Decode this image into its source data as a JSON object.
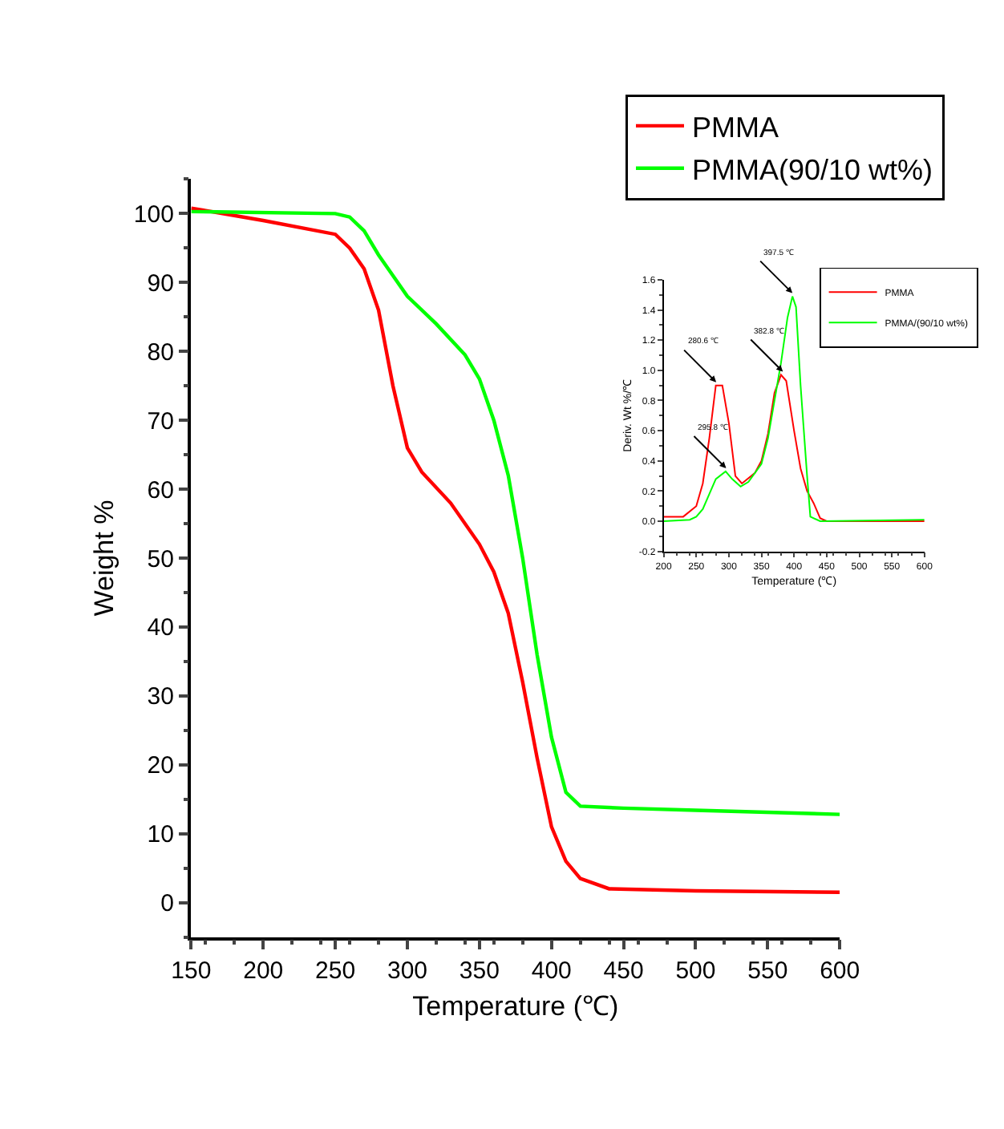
{
  "chart_data": [
    {
      "type": "line",
      "xlabel": "Temperature (℃)",
      "ylabel": "Weight %",
      "xlim": [
        150,
        600
      ],
      "ylim": [
        -5,
        105
      ],
      "xticks": [
        150,
        200,
        250,
        300,
        350,
        400,
        450,
        500,
        550,
        600
      ],
      "yticks": [
        0,
        10,
        20,
        30,
        40,
        50,
        60,
        70,
        80,
        90,
        100
      ],
      "legend": "top right",
      "series": [
        {
          "name": "PMMA",
          "color": "#ff0000",
          "x": [
            150,
            200,
            250,
            260,
            270,
            280,
            290,
            300,
            310,
            330,
            350,
            360,
            370,
            380,
            390,
            400,
            410,
            420,
            440,
            500,
            600
          ],
          "values": [
            100.8,
            99,
            97,
            95,
            92,
            86,
            75,
            66,
            62.5,
            58,
            52,
            48,
            42,
            32,
            21,
            11,
            6,
            3.5,
            2,
            1.7,
            1.5
          ]
        },
        {
          "name": "PMMA(90/10 wt%)",
          "color": "#00ff00",
          "x": [
            150,
            250,
            260,
            270,
            280,
            290,
            300,
            320,
            340,
            350,
            360,
            370,
            380,
            390,
            400,
            410,
            420,
            450,
            500,
            600
          ],
          "values": [
            100.3,
            100,
            99.5,
            97.5,
            94,
            91,
            88,
            84,
            79.5,
            76,
            70,
            62,
            50,
            36,
            24,
            16,
            14,
            13.7,
            13.4,
            12.8
          ]
        }
      ]
    },
    {
      "type": "line",
      "xlabel": "Temperature (℃)",
      "ylabel": "Deriv. Wt %/℃",
      "xlim": [
        200,
        600
      ],
      "ylim": [
        -0.2,
        1.6
      ],
      "xticks": [
        200,
        250,
        300,
        350,
        400,
        450,
        500,
        550,
        600
      ],
      "yticks": [
        -0.2,
        {
          "value": 0,
          "label": "0.0"
        },
        0.2,
        0.4,
        0.6,
        0.8,
        {
          "value": 1,
          "label": "1.0"
        },
        1.2,
        1.4,
        1.6
      ],
      "legend": "top right",
      "series": [
        {
          "name": "PMMA",
          "color": "#ff0000",
          "x": [
            200,
            230,
            250,
            260,
            270,
            280,
            290,
            300,
            310,
            320,
            340,
            350,
            360,
            370,
            380,
            388,
            400,
            410,
            420,
            430,
            440,
            450,
            600
          ],
          "values": [
            0.03,
            0.03,
            0.1,
            0.25,
            0.55,
            0.9,
            0.9,
            0.65,
            0.3,
            0.25,
            0.32,
            0.4,
            0.58,
            0.85,
            0.97,
            0.93,
            0.6,
            0.35,
            0.2,
            0.12,
            0.02,
            0.0,
            0.0
          ]
        },
        {
          "name": "PMMA/(90/10 wt%)",
          "color": "#00ff00",
          "x": [
            200,
            240,
            250,
            260,
            270,
            280,
            295,
            305,
            318,
            330,
            350,
            360,
            370,
            380,
            390,
            397.5,
            403,
            410,
            420,
            425,
            440,
            600
          ],
          "values": [
            0,
            0.01,
            0.03,
            0.08,
            0.18,
            0.28,
            0.33,
            0.28,
            0.23,
            0.26,
            0.38,
            0.55,
            0.8,
            1.05,
            1.35,
            1.49,
            1.42,
            0.9,
            0.3,
            0.03,
            0.0,
            0.01
          ]
        }
      ],
      "annotations": [
        {
          "text": "397.5 ℃",
          "x": 397.5,
          "y": 1.49
        },
        {
          "text": "382.8 ℃",
          "x": 382.8,
          "y": 0.97
        },
        {
          "text": "280.6 ℃",
          "x": 280.6,
          "y": 0.9
        },
        {
          "text": "295.8 ℃",
          "x": 295.8,
          "y": 0.33
        }
      ]
    }
  ]
}
